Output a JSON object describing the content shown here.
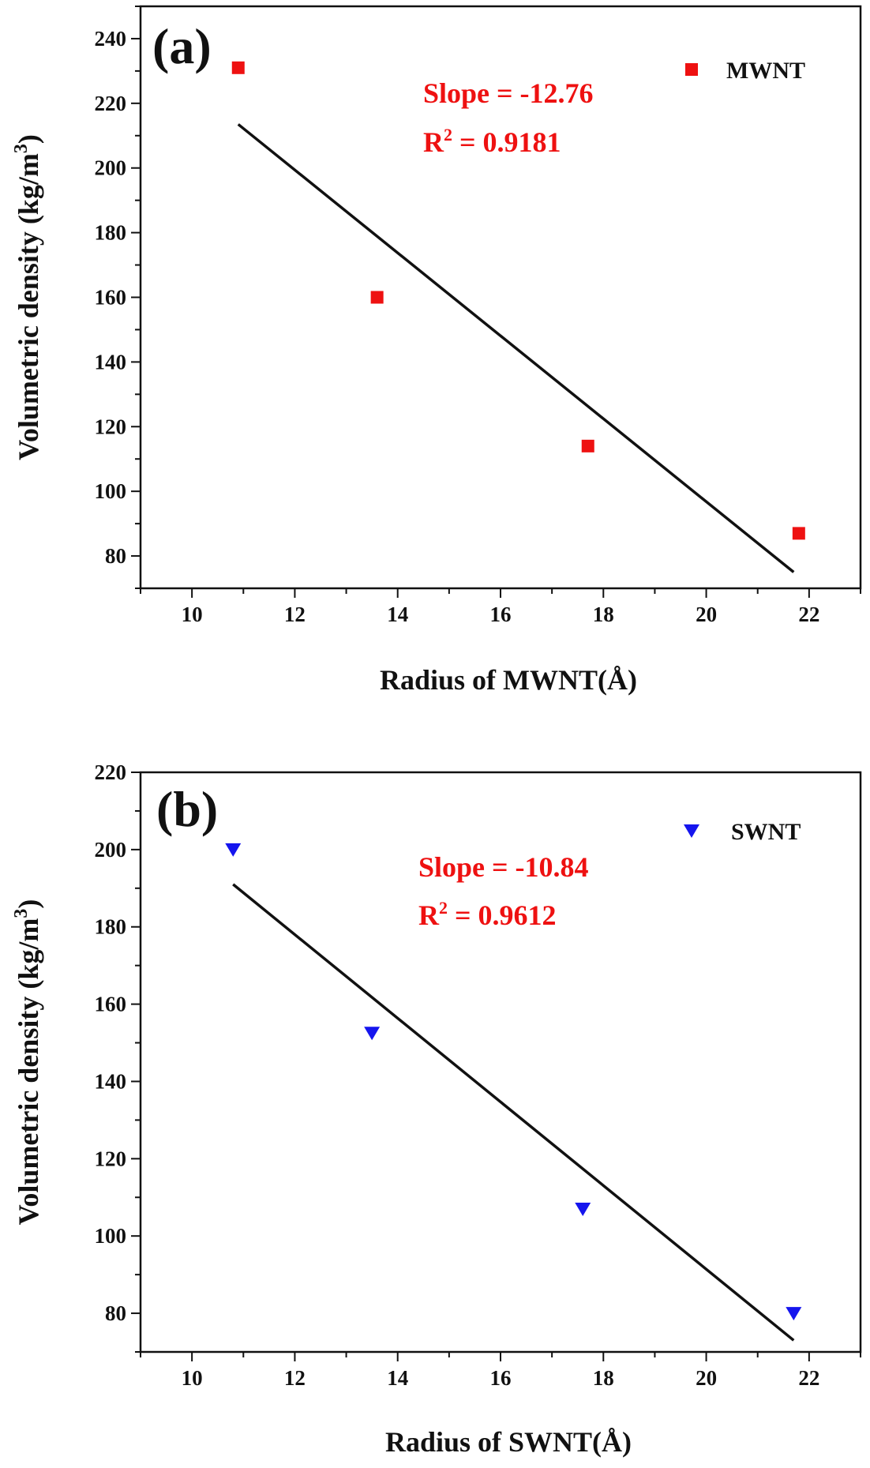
{
  "chart_data": [
    {
      "type": "scatter",
      "panel_label": "(a)",
      "xlabel": "Radius of MWNT(Å)",
      "ylabel": "Volumetric density (kg/m3)",
      "xlim": [
        9,
        23
      ],
      "ylim": [
        70,
        250
      ],
      "xticks": [
        10,
        12,
        14,
        16,
        18,
        20,
        22
      ],
      "yticks": [
        80,
        100,
        120,
        140,
        160,
        180,
        200,
        220,
        240
      ],
      "series": [
        {
          "name": "MWNT",
          "marker": "square",
          "color": "#ee1111",
          "x": [
            10.9,
            13.6,
            17.7,
            21.8
          ],
          "y": [
            231,
            160,
            114,
            87
          ]
        }
      ],
      "fit_line": {
        "x": [
          10.9,
          21.7
        ],
        "y": [
          213.5,
          75
        ]
      },
      "annotation": {
        "slope_text": "Slope = -12.76",
        "r2_text": "R2 = 0.9181",
        "color": "#ee1111"
      },
      "legend": {
        "position": "top-right"
      }
    },
    {
      "type": "scatter",
      "panel_label": "(b)",
      "xlabel": "Radius of SWNT(Å)",
      "ylabel": "Volumetric density (kg/m3)",
      "xlim": [
        9,
        23
      ],
      "ylim": [
        70,
        220
      ],
      "xticks": [
        10,
        12,
        14,
        16,
        18,
        20,
        22
      ],
      "yticks": [
        80,
        100,
        120,
        140,
        160,
        180,
        200,
        220
      ],
      "series": [
        {
          "name": "SWNT",
          "marker": "triangle-down",
          "color": "#1515ee",
          "x": [
            10.8,
            13.5,
            17.6,
            21.7
          ],
          "y": [
            200,
            152.5,
            107,
            80
          ]
        }
      ],
      "fit_line": {
        "x": [
          10.8,
          21.7
        ],
        "y": [
          191,
          73
        ]
      },
      "annotation": {
        "slope_text": "Slope = -10.84",
        "r2_text": "R2 = 0.9612",
        "color": "#ee1111"
      },
      "legend": {
        "position": "top-right"
      }
    }
  ]
}
